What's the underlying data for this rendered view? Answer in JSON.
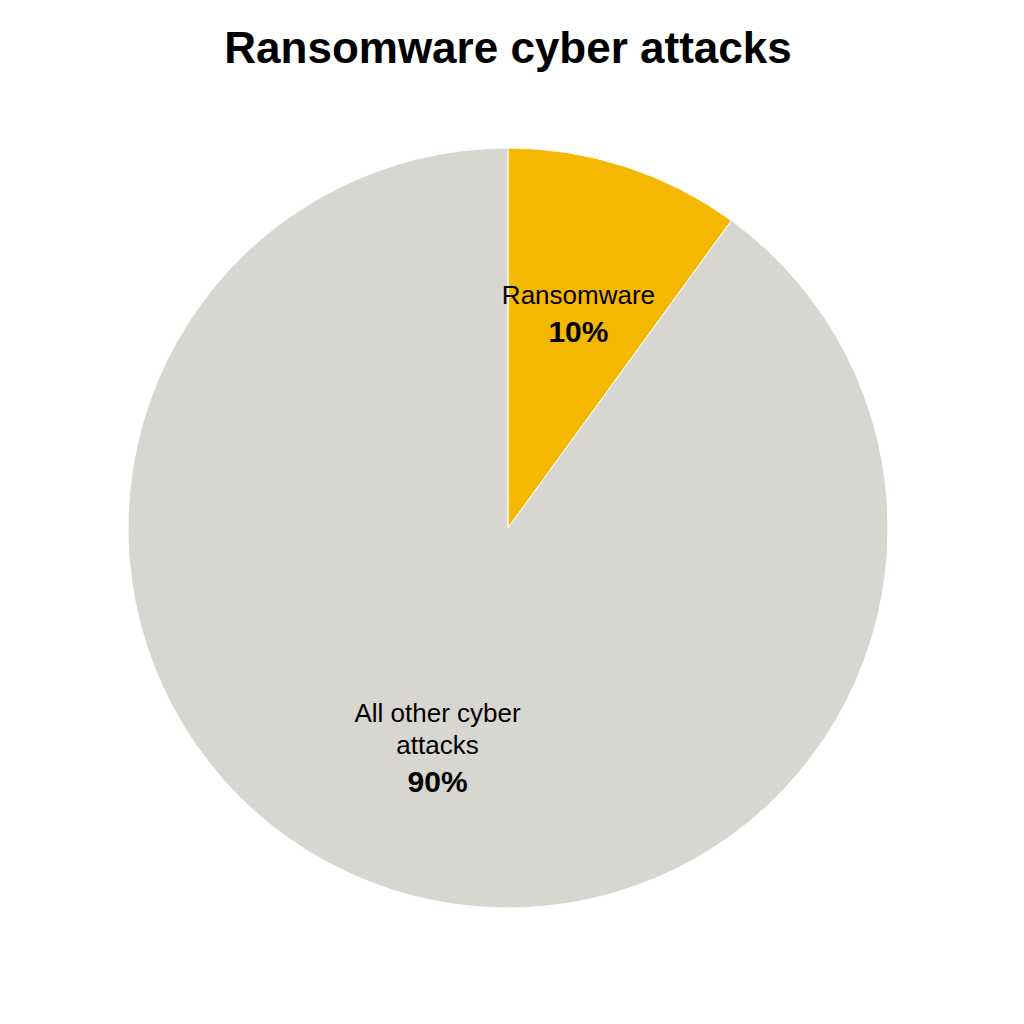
{
  "chart_data": {
    "type": "pie",
    "title": "Ransomware cyber attacks",
    "categories": [
      "Ransomware",
      "All other cyber\nattacks"
    ],
    "values": [
      10,
      90
    ],
    "value_labels": [
      "10%",
      "90%"
    ],
    "colors": [
      "#f5b800",
      "#d8d6d0"
    ],
    "data_labels": true
  }
}
